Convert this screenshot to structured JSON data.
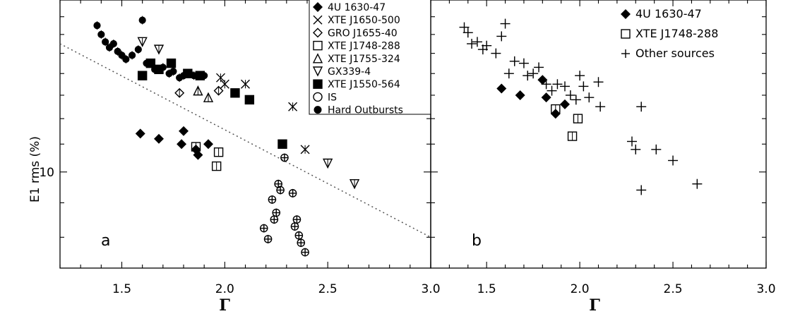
{
  "chart_data": [
    {
      "panel": "a",
      "type": "scatter",
      "xlabel": "Γ",
      "ylabel": "E1 rms (%)",
      "xlim": [
        1.2,
        3.0
      ],
      "ylim": [
        7.2,
        18.0
      ],
      "yscale": "log",
      "xticks": [
        "1.5",
        "2.0",
        "2.5",
        "3.0"
      ],
      "yticks": [
        "10"
      ],
      "legend_position": "top-right",
      "panel_label": "a",
      "trend_line": {
        "style": "dotted",
        "x": [
          1.2,
          3.0
        ],
        "y": [
          15.5,
          8.0
        ]
      },
      "series": [
        {
          "name": "4U 1630-47",
          "marker": "filled-diamond",
          "x": [
            1.59,
            1.68,
            1.79,
            1.8,
            1.86,
            1.92,
            1.87
          ],
          "y": [
            11.4,
            11.2,
            11.0,
            11.5,
            10.8,
            11.0,
            10.6
          ]
        },
        {
          "name": "XTE J1650-500",
          "marker": "x",
          "x": [
            1.98,
            2.0,
            2.1,
            2.33,
            2.39
          ],
          "y": [
            13.8,
            13.5,
            13.5,
            12.5,
            10.8
          ]
        },
        {
          "name": "GRO J1655-40",
          "marker": "open-diamond",
          "x": [
            1.78,
            1.97
          ],
          "y": [
            13.1,
            13.2
          ]
        },
        {
          "name": "XTE J1748-288",
          "marker": "open-square",
          "x": [
            1.86,
            1.97,
            1.96
          ],
          "y": [
            10.9,
            10.7,
            10.2
          ]
        },
        {
          "name": "XTE J1755-324",
          "marker": "open-triangle",
          "x": [
            1.87,
            1.92
          ],
          "y": [
            13.2,
            12.9
          ]
        },
        {
          "name": "GX339-4",
          "marker": "open-triangle-down",
          "x": [
            1.6,
            1.68,
            2.5,
            2.63
          ],
          "y": [
            15.6,
            15.2,
            10.3,
            9.6
          ]
        },
        {
          "name": "XTE J1550-564",
          "marker": "filled-square",
          "x": [
            1.6,
            1.64,
            1.68,
            1.74,
            1.82,
            1.88,
            2.05,
            2.12,
            2.28
          ],
          "y": [
            13.9,
            14.5,
            14.2,
            14.5,
            14.0,
            13.9,
            13.1,
            12.8,
            11.0
          ]
        },
        {
          "name": "IS",
          "marker": "open-circle-plus",
          "x": [
            2.19,
            2.21,
            2.23,
            2.24,
            2.25,
            2.26,
            2.27,
            2.29,
            2.33,
            2.34,
            2.35,
            2.36,
            2.37,
            2.39
          ],
          "y": [
            8.25,
            7.95,
            9.1,
            8.5,
            8.7,
            9.6,
            9.4,
            10.5,
            9.3,
            8.3,
            8.5,
            8.05,
            7.85,
            7.6
          ]
        },
        {
          "name": "Hard Outbursts",
          "marker": "filled-circle",
          "x": [
            1.38,
            1.4,
            1.42,
            1.44,
            1.46,
            1.48,
            1.5,
            1.52,
            1.55,
            1.58,
            1.6,
            1.62,
            1.66,
            1.7,
            1.73,
            1.75,
            1.78,
            1.8,
            1.83,
            1.85,
            1.9
          ],
          "y": [
            16.5,
            16.0,
            15.6,
            15.3,
            15.5,
            15.1,
            14.9,
            14.7,
            14.9,
            15.2,
            16.8,
            14.5,
            14.2,
            14.3,
            14.0,
            14.1,
            13.8,
            13.9,
            14.0,
            13.9,
            13.9
          ]
        }
      ]
    },
    {
      "panel": "b",
      "type": "scatter",
      "xlabel": "Γ",
      "xlim": [
        1.2,
        3.0
      ],
      "ylim": [
        7.2,
        18.0
      ],
      "yscale": "log",
      "xticks": [
        "1.5",
        "2.0",
        "2.5",
        "3.0"
      ],
      "legend_position": "top-right",
      "panel_label": "b",
      "series": [
        {
          "name": "4U 1630-47",
          "marker": "filled-diamond",
          "x": [
            1.58,
            1.68,
            1.8,
            1.82,
            1.87,
            1.92
          ],
          "y": [
            13.3,
            13.0,
            13.7,
            12.9,
            12.2,
            12.6
          ]
        },
        {
          "name": "XTE J1748-288",
          "marker": "open-square",
          "x": [
            1.87,
            1.99,
            1.96
          ],
          "y": [
            12.4,
            12.0,
            11.3
          ]
        },
        {
          "name": "Other sources",
          "marker": "plus",
          "x": [
            1.38,
            1.4,
            1.42,
            1.45,
            1.48,
            1.5,
            1.55,
            1.58,
            1.6,
            1.62,
            1.65,
            1.7,
            1.72,
            1.75,
            1.78,
            1.82,
            1.85,
            1.88,
            1.92,
            1.95,
            1.98,
            2.0,
            2.02,
            2.05,
            2.1,
            2.11,
            2.28,
            2.3,
            2.33,
            2.33,
            2.41,
            2.5,
            2.63
          ],
          "y": [
            16.4,
            16.1,
            15.5,
            15.6,
            15.2,
            15.4,
            15.0,
            15.9,
            16.6,
            14.0,
            14.6,
            14.5,
            13.9,
            14.0,
            14.3,
            13.5,
            13.2,
            13.5,
            13.4,
            13.0,
            12.8,
            13.9,
            13.4,
            12.9,
            13.6,
            12.5,
            11.1,
            10.8,
            12.5,
            9.4,
            10.8,
            10.4,
            9.6
          ]
        }
      ]
    }
  ],
  "legend_a": [
    "4U 1630-47",
    "XTE J1650-500",
    "GRO J1655-40",
    "XTE J1748-288",
    "XTE J1755-324",
    "GX339-4",
    "XTE J1550-564",
    "IS",
    "Hard Outbursts"
  ],
  "legend_b": [
    "4U 1630-47",
    "XTE J1748-288",
    "Other sources"
  ]
}
